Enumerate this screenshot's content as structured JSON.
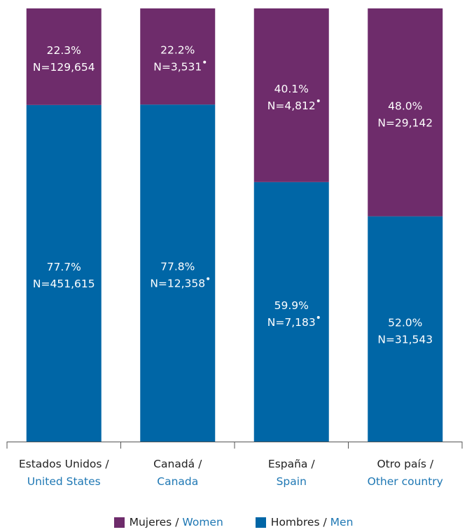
{
  "colors": {
    "women": "#6e2c6b",
    "men": "#0066a6",
    "english": "#1f78b4",
    "axis": "#555555"
  },
  "chart_data": {
    "type": "bar",
    "stacked": true,
    "percent_stacked": true,
    "categories": [
      {
        "es": "Estados Unidos /",
        "en": "United States"
      },
      {
        "es": "Canadá /",
        "en": "Canada"
      },
      {
        "es": "España /",
        "en": "Spain"
      },
      {
        "es": "Otro país /",
        "en": "Other country"
      }
    ],
    "ylim": [
      0,
      100
    ],
    "grid": false,
    "legend_position": "bottom",
    "series": [
      {
        "key": "men",
        "legend_es": "Hombres /",
        "legend_en": "Men",
        "values": [
          77.7,
          77.8,
          59.9,
          52.0
        ],
        "pct_labels": [
          "77.7%",
          "77.8%",
          "59.9%",
          "52.0%"
        ],
        "n_labels": [
          "N=451,615",
          "N=12,358",
          "N=7,183",
          "N=31,543"
        ],
        "flagged": [
          false,
          true,
          true,
          false
        ]
      },
      {
        "key": "women",
        "legend_es": "Mujeres /",
        "legend_en": "Women",
        "values": [
          22.3,
          22.2,
          40.1,
          48.0
        ],
        "pct_labels": [
          "22.3%",
          "22.2%",
          "40.1%",
          "48.0%"
        ],
        "n_labels": [
          "N=129,654",
          "N=3,531",
          "N=4,812",
          "N=29,142"
        ],
        "flagged": [
          false,
          true,
          true,
          false
        ]
      }
    ]
  }
}
